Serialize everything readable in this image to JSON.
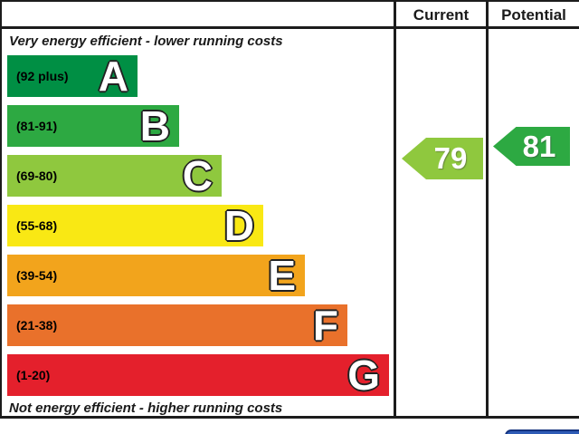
{
  "header": {
    "current": "Current",
    "potential": "Potential"
  },
  "captions": {
    "top": "Very energy efficient - lower running costs",
    "bottom": "Not energy efficient - higher running costs"
  },
  "bands": [
    {
      "letter": "A",
      "label": "(92 plus)",
      "range": "92 plus",
      "color": "#008f44"
    },
    {
      "letter": "B",
      "label": "(81-91)",
      "range": "81-91",
      "color": "#2da942"
    },
    {
      "letter": "C",
      "label": "(69-80)",
      "range": "69-80",
      "color": "#8fc83e"
    },
    {
      "letter": "D",
      "label": "(55-68)",
      "range": "55-68",
      "color": "#f9e814"
    },
    {
      "letter": "E",
      "label": "(39-54)",
      "range": "39-54",
      "color": "#f2a41c"
    },
    {
      "letter": "F",
      "label": "(21-38)",
      "range": "21-38",
      "color": "#e9712b"
    },
    {
      "letter": "G",
      "label": "(1-20)",
      "range": "1-20",
      "color": "#e4202c"
    }
  ],
  "ratings": {
    "current": {
      "value": "79",
      "band": "C",
      "color": "#8fc83e"
    },
    "potential": {
      "value": "81",
      "band": "B",
      "color": "#2da942"
    }
  },
  "chart_data": {
    "type": "bar",
    "subtype": "energy-efficiency-rating-epc",
    "orientation": "horizontal",
    "categories": [
      "A",
      "B",
      "C",
      "D",
      "E",
      "F",
      "G"
    ],
    "band_ranges": [
      "92 plus",
      "81-91",
      "69-80",
      "55-68",
      "39-54",
      "21-38",
      "1-20"
    ],
    "band_colors": [
      "#008f44",
      "#2da942",
      "#8fc83e",
      "#f9e814",
      "#f2a41c",
      "#e9712b",
      "#e4202c"
    ],
    "columns": [
      "Current",
      "Potential"
    ],
    "current_rating": 79,
    "potential_rating": 81,
    "current_rating_band": "C",
    "potential_rating_band": "B",
    "top_caption": "Very energy efficient - lower running costs",
    "bottom_caption": "Not energy efficient - higher running costs",
    "grid": false,
    "legend_position": "none"
  }
}
